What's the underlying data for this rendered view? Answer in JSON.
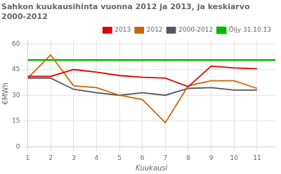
{
  "chart_data": {
    "type": "line",
    "title": "Sahkon kuukausihinta vuonna 2012 ja 2013, ja keskiarvo\n2000-2012",
    "xlabel": "Kuukausi",
    "ylabel": "€MWh",
    "x": [
      1,
      2,
      3,
      4,
      5,
      6,
      7,
      8,
      9,
      10,
      11
    ],
    "series": [
      {
        "name": "2013",
        "color": "#dd0000",
        "values": [
          41.0,
          41.0,
          45.0,
          43.5,
          41.5,
          40.5,
          40.0,
          35.0,
          47.0,
          46.0,
          45.5
        ]
      },
      {
        "name": "2012",
        "color": "#cc6600",
        "values": [
          40.0,
          53.5,
          35.5,
          34.5,
          30.0,
          27.5,
          14.0,
          35.5,
          38.5,
          38.5,
          34.0
        ]
      },
      {
        "name": "2000-2012",
        "color": "#555566",
        "values": [
          40.0,
          40.0,
          33.5,
          31.5,
          30.0,
          31.5,
          30.0,
          34.0,
          34.5,
          33.0,
          33.0
        ]
      },
      {
        "name": "Öljy 31.10.13",
        "color": "#00bb00",
        "type": "hline",
        "value": 50.5
      }
    ],
    "xlim": [
      1,
      11.8
    ],
    "xticks": [
      1,
      2,
      3,
      4,
      5,
      6,
      7,
      8,
      9,
      10,
      11
    ],
    "ylim": [
      0,
      62
    ],
    "yticks": [
      0,
      15,
      30,
      45,
      60
    ],
    "grid": true,
    "legend": "upper right"
  }
}
